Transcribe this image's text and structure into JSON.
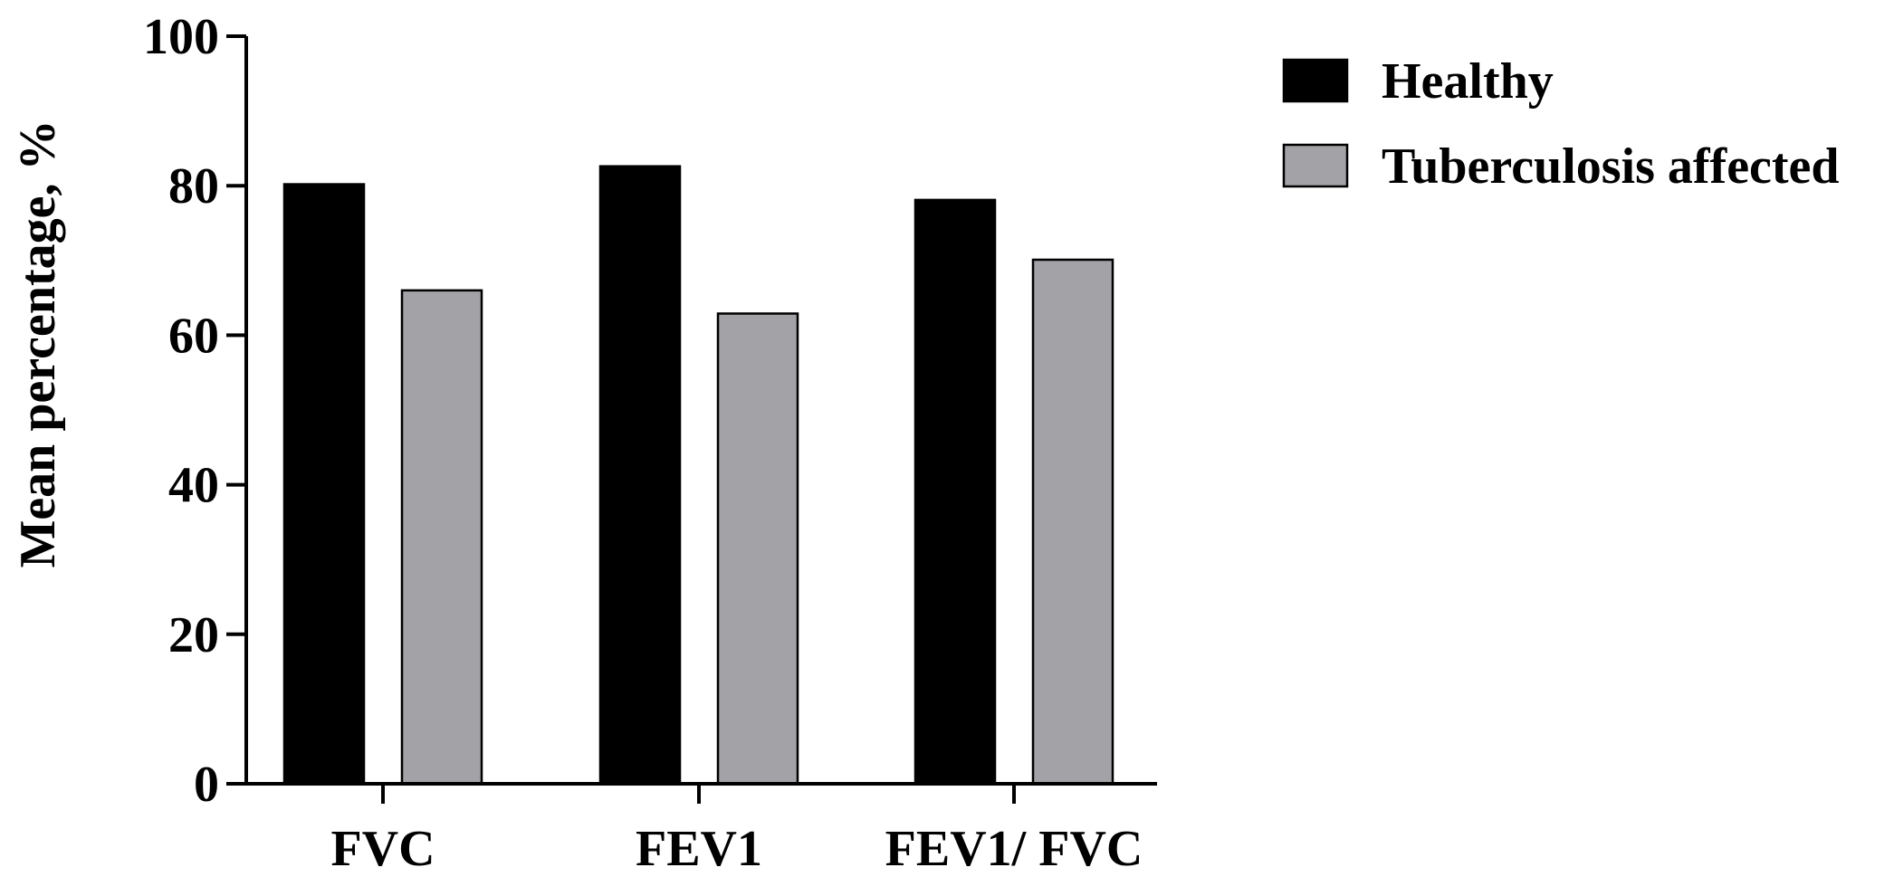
{
  "chart_data": {
    "type": "bar",
    "title": "",
    "xlabel": "",
    "ylabel": "Mean percentage, %",
    "ylim": [
      0,
      100
    ],
    "yticks": [
      "0",
      "20",
      "40",
      "60",
      "80",
      "100"
    ],
    "categories": [
      "FVC",
      "FEV1",
      "FEV1/ FVC"
    ],
    "series": [
      {
        "name": "Healthy",
        "values": [
          80.2,
          82.6,
          78.1
        ],
        "color": "#000000"
      },
      {
        "name": "Tuberculosis affected",
        "values": [
          66.0,
          62.9,
          70.1
        ],
        "color": "#a3a2a7"
      }
    ],
    "grid": false,
    "legend_position": "top-right"
  }
}
